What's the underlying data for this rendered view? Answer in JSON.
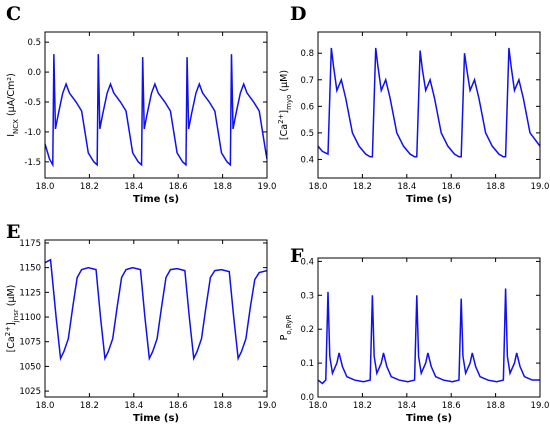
{
  "chart_data": [
    {
      "type": "line",
      "panel": "C",
      "color": "#1010ee",
      "ylabel": [
        {
          "text": "I"
        },
        {
          "text": "NCX",
          "script": "sub"
        },
        {
          "text": " (μA/Cm²)"
        }
      ],
      "xlabel": "Time (s)",
      "xlim": [
        18,
        19
      ],
      "ylim": [
        -1.77,
        0.67
      ],
      "xticks": [
        {
          "value": 18,
          "label": "18.0"
        },
        18.2,
        18.4,
        18.6,
        18.8,
        {
          "value": 19,
          "label": "19.0"
        }
      ],
      "yticks": [
        -1.5,
        {
          "value": -1,
          "label": "-1.0"
        },
        -0.5,
        {
          "value": 0,
          "label": "0.0"
        },
        0.5
      ],
      "x": [
        18.0,
        18.02,
        18.035,
        18.04,
        18.047,
        18.06,
        18.08,
        18.095,
        18.11,
        18.14,
        18.165,
        18.18,
        18.195,
        18.22,
        18.235,
        18.24,
        18.247,
        18.26,
        18.28,
        18.295,
        18.31,
        18.34,
        18.365,
        18.38,
        18.395,
        18.42,
        18.435,
        18.44,
        18.447,
        18.46,
        18.48,
        18.495,
        18.51,
        18.54,
        18.565,
        18.58,
        18.595,
        18.62,
        18.635,
        18.64,
        18.647,
        18.66,
        18.68,
        18.695,
        18.71,
        18.74,
        18.765,
        18.78,
        18.795,
        18.82,
        18.835,
        18.84,
        18.847,
        18.86,
        18.88,
        18.895,
        18.91,
        18.94,
        18.965,
        18.98,
        18.995,
        19.0
      ],
      "values": [
        -1.2,
        -1.45,
        -1.55,
        0.3,
        -0.95,
        -0.7,
        -0.35,
        -0.2,
        -0.35,
        -0.5,
        -0.65,
        -1.0,
        -1.35,
        -1.5,
        -1.55,
        0.3,
        -0.95,
        -0.7,
        -0.35,
        -0.2,
        -0.35,
        -0.5,
        -0.65,
        -1.0,
        -1.35,
        -1.5,
        -1.55,
        0.25,
        -0.95,
        -0.7,
        -0.35,
        -0.2,
        -0.35,
        -0.5,
        -0.65,
        -1.0,
        -1.35,
        -1.5,
        -1.55,
        0.25,
        -0.95,
        -0.7,
        -0.35,
        -0.2,
        -0.35,
        -0.5,
        -0.65,
        -1.0,
        -1.35,
        -1.5,
        -1.55,
        0.3,
        -0.95,
        -0.7,
        -0.35,
        -0.2,
        -0.35,
        -0.5,
        -0.65,
        -1.0,
        -1.35,
        -1.45
      ]
    },
    {
      "type": "line",
      "panel": "D",
      "color": "#1010ee",
      "ylabel": [
        {
          "text": "[Ca"
        },
        {
          "text": "2+",
          "script": "sup"
        },
        {
          "text": "]"
        },
        {
          "text": "myo",
          "script": "sub"
        },
        {
          "text": " (μM)"
        }
      ],
      "xlabel": "Time (s)",
      "xlim": [
        18,
        19
      ],
      "ylim": [
        0.33,
        0.88
      ],
      "xticks": [
        {
          "value": 18,
          "label": "18.0"
        },
        18.2,
        18.4,
        18.6,
        18.8,
        {
          "value": 19,
          "label": "19.0"
        }
      ],
      "yticks": [
        0.4,
        0.5,
        0.6,
        0.7,
        0.8
      ],
      "x": [
        18.0,
        18.02,
        18.045,
        18.06,
        18.07,
        18.085,
        18.105,
        18.125,
        18.155,
        18.185,
        18.215,
        18.235,
        18.245,
        18.26,
        18.27,
        18.285,
        18.305,
        18.325,
        18.355,
        18.385,
        18.415,
        18.435,
        18.445,
        18.46,
        18.47,
        18.485,
        18.505,
        18.525,
        18.555,
        18.585,
        18.615,
        18.635,
        18.645,
        18.66,
        18.67,
        18.685,
        18.705,
        18.725,
        18.755,
        18.785,
        18.815,
        18.835,
        18.845,
        18.86,
        18.87,
        18.885,
        18.905,
        18.925,
        18.955,
        19.0
      ],
      "values": [
        0.45,
        0.43,
        0.42,
        0.82,
        0.75,
        0.66,
        0.7,
        0.63,
        0.5,
        0.45,
        0.42,
        0.41,
        0.41,
        0.82,
        0.75,
        0.66,
        0.7,
        0.63,
        0.5,
        0.45,
        0.42,
        0.41,
        0.41,
        0.81,
        0.74,
        0.66,
        0.7,
        0.63,
        0.5,
        0.45,
        0.42,
        0.41,
        0.41,
        0.8,
        0.74,
        0.66,
        0.7,
        0.63,
        0.5,
        0.45,
        0.42,
        0.41,
        0.41,
        0.82,
        0.75,
        0.66,
        0.7,
        0.63,
        0.5,
        0.45
      ]
    },
    {
      "type": "line",
      "panel": "E",
      "color": "#1010ee",
      "ylabel": [
        {
          "text": "[Ca"
        },
        {
          "text": "2+",
          "script": "sup"
        },
        {
          "text": "]"
        },
        {
          "text": "jnsr",
          "script": "sub"
        },
        {
          "text": " (μM)"
        }
      ],
      "xlabel": "Time (s)",
      "xlim": [
        18,
        19
      ],
      "ylim": [
        1019,
        1178
      ],
      "xticks": [
        {
          "value": 18,
          "label": "18.0"
        },
        18.2,
        18.4,
        18.6,
        18.8,
        {
          "value": 19,
          "label": "19.0"
        }
      ],
      "yticks": [
        1025,
        1050,
        1075,
        1100,
        1125,
        1150,
        1175
      ],
      "x": [
        18.0,
        18.025,
        18.05,
        18.07,
        18.085,
        18.105,
        18.125,
        18.145,
        18.165,
        18.195,
        18.23,
        18.25,
        18.27,
        18.285,
        18.305,
        18.325,
        18.345,
        18.365,
        18.395,
        18.43,
        18.45,
        18.47,
        18.485,
        18.505,
        18.525,
        18.545,
        18.565,
        18.595,
        18.63,
        18.65,
        18.67,
        18.685,
        18.705,
        18.725,
        18.745,
        18.765,
        18.795,
        18.83,
        18.85,
        18.87,
        18.885,
        18.905,
        18.925,
        18.945,
        18.965,
        19.0
      ],
      "values": [
        1155,
        1158,
        1100,
        1058,
        1065,
        1078,
        1110,
        1140,
        1148,
        1150,
        1148,
        1100,
        1058,
        1065,
        1078,
        1110,
        1140,
        1148,
        1150,
        1148,
        1100,
        1058,
        1065,
        1078,
        1110,
        1140,
        1148,
        1149,
        1147,
        1100,
        1058,
        1065,
        1078,
        1110,
        1140,
        1147,
        1148,
        1146,
        1100,
        1058,
        1065,
        1078,
        1110,
        1138,
        1145,
        1147
      ]
    },
    {
      "type": "line",
      "panel": "F",
      "color": "#1010ee",
      "ylabel": [
        {
          "text": "P"
        },
        {
          "text": "o,RyR",
          "script": "sub"
        }
      ],
      "xlabel": "Time (s)",
      "xlim": [
        18,
        19
      ],
      "ylim": [
        0,
        0.41
      ],
      "xticks": [
        {
          "value": 18,
          "label": "18.0"
        },
        18.2,
        18.4,
        18.6,
        18.8,
        {
          "value": 19,
          "label": "19.0"
        }
      ],
      "yticks": [
        {
          "value": 0,
          "label": "0.0"
        },
        0.1,
        0.2,
        0.3,
        0.4
      ],
      "x": [
        18.0,
        18.02,
        18.035,
        18.045,
        18.053,
        18.065,
        18.085,
        18.095,
        18.11,
        18.13,
        18.165,
        18.205,
        18.235,
        18.245,
        18.253,
        18.265,
        18.285,
        18.295,
        18.31,
        18.33,
        18.365,
        18.405,
        18.435,
        18.445,
        18.453,
        18.465,
        18.485,
        18.495,
        18.51,
        18.53,
        18.565,
        18.605,
        18.635,
        18.645,
        18.653,
        18.665,
        18.685,
        18.695,
        18.71,
        18.73,
        18.765,
        18.805,
        18.835,
        18.845,
        18.853,
        18.865,
        18.885,
        18.895,
        18.91,
        18.93,
        18.965,
        19.0
      ],
      "values": [
        0.05,
        0.04,
        0.05,
        0.31,
        0.12,
        0.07,
        0.1,
        0.13,
        0.09,
        0.06,
        0.05,
        0.045,
        0.05,
        0.3,
        0.12,
        0.07,
        0.1,
        0.13,
        0.09,
        0.06,
        0.05,
        0.045,
        0.05,
        0.3,
        0.12,
        0.07,
        0.1,
        0.13,
        0.09,
        0.06,
        0.05,
        0.045,
        0.05,
        0.29,
        0.12,
        0.07,
        0.1,
        0.13,
        0.09,
        0.06,
        0.05,
        0.045,
        0.05,
        0.32,
        0.12,
        0.07,
        0.1,
        0.13,
        0.09,
        0.06,
        0.05,
        0.05
      ]
    }
  ]
}
